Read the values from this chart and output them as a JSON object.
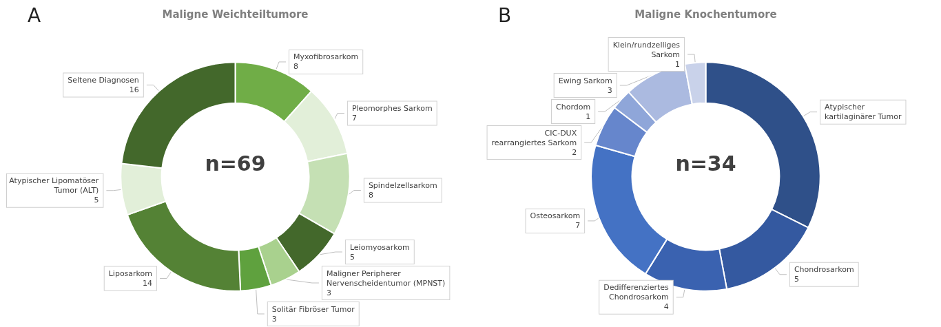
{
  "chart_data": [
    {
      "type": "donut",
      "title": "Maligne Weichteiltumore",
      "annotations": [
        "A",
        "n=69"
      ],
      "categories": [
        "Myxofibrosarkom",
        "Pleomorphes Sarkom",
        "Spindelzellsarkom",
        "Leiomyosarkom",
        "Maligner Peripherer Nervenscheidentumor (MPNST)",
        "Solitär Fibröser Tumor",
        "Liposarkom",
        "Atypischer Lipomatöser Tumor (ALT)",
        "Seltene Diagnosen"
      ],
      "values": [
        8,
        7,
        8,
        5,
        3,
        3,
        14,
        5,
        16
      ],
      "value_labels": [
        "8",
        "7",
        "8",
        "5",
        "3",
        "3",
        "14",
        "5",
        "16"
      ],
      "colors": [
        "#70ad47",
        "#e2efd9",
        "#c5e0b4",
        "#43682b",
        "#a9d18e",
        "#5fa13e",
        "#548235",
        "#e2efd9",
        "#43682b"
      ],
      "legend": false
    },
    {
      "type": "donut",
      "title": "Maligne Knochentumore",
      "annotations": [
        "B",
        "n=34"
      ],
      "categories": [
        "Atypischer kartilaginärer Tumor",
        "Chondrosarkom",
        "Dedifferenziertes Chondrosarkom",
        "Osteosarkom",
        "CIC-DUX rearrangiertes Sarkom",
        "Chordom",
        "Ewing Sarkom",
        "Klein/rundzelliges Sarkom"
      ],
      "values": [
        11,
        5,
        4,
        7,
        2,
        1,
        3,
        1
      ],
      "value_labels": [
        null,
        "5",
        "4",
        "7",
        "2",
        "1",
        "3",
        "1"
      ],
      "colors": [
        "#2f5089",
        "#3459a0",
        "#3a62b0",
        "#4472c4",
        "#6686cc",
        "#8fa6d9",
        "#abbae0",
        "#c9d2ea"
      ],
      "legend": false
    }
  ]
}
